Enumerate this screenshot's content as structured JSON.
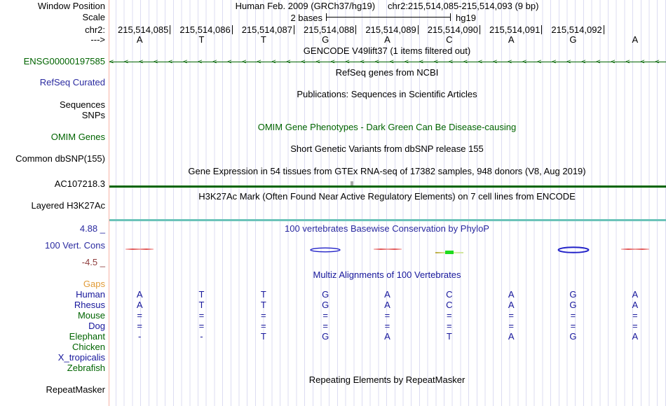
{
  "header": {
    "window_position_label": "Window Position",
    "assembly_title": "Human Feb. 2009 (GRCh37/hg19)",
    "position_string": "chr2:215,514,085-215,514,093 (9 bp)",
    "scale_label": "Scale",
    "scale_value": "2 bases",
    "assembly_short": "hg19",
    "chrom_label": "chr2:",
    "strand_label": "--->"
  },
  "ruler": {
    "coordinates": [
      "215,514,085",
      "215,514,086",
      "215,514,087",
      "215,514,088",
      "215,514,089",
      "215,514,090",
      "215,514,091",
      "215,514,092"
    ],
    "sequence": [
      "A",
      "T",
      "T",
      "G",
      "A",
      "C",
      "A",
      "G",
      "A"
    ]
  },
  "track_titles": {
    "gencode": "GENCODE V49lift37 (1 items filtered out)",
    "refseq": "RefSeq genes from NCBI",
    "publications": "Publications: Sequences in Scientific Articles",
    "omim": "OMIM Gene Phenotypes - Dark Green Can Be Disease-causing",
    "dbsnp": "Short Genetic Variants from dbSNP release 155",
    "gtex": "Gene Expression in 54 tissues from GTEx RNA-seq of 17382 samples, 948 donors (V8, Aug 2019)",
    "h3k27ac": "H3K27Ac Mark (Often Found Near Active Regulatory Elements) on 7 cell lines from ENCODE",
    "phylop": "100 vertebrates Basewise Conservation by PhyloP",
    "multiz": "Multiz Alignments of 100 Vertebrates",
    "repeatmasker": "Repeating Elements by RepeatMasker"
  },
  "left_labels": {
    "gene": "ENSG00000197585",
    "refseq_curated": "RefSeq Curated",
    "sequences": "Sequences",
    "snps": "SNPs",
    "omim_genes": "OMIM Genes",
    "common_dbsnp": "Common dbSNP(155)",
    "gtex_gene": "AC107218.3",
    "layered_h3k27ac": "Layered H3K27Ac",
    "repeatmasker": "RepeatMasker"
  },
  "conservation": {
    "label": "100 Vert. Cons",
    "scale_max": "4.88 _",
    "scale_min": "-4.5 _",
    "marks": [
      {
        "base_index": 0,
        "shape": "line",
        "color": "red"
      },
      {
        "base_index": 3,
        "shape": "lens",
        "color": "blue",
        "size": "small"
      },
      {
        "base_index": 4,
        "shape": "line",
        "color": "red"
      },
      {
        "base_index": 5,
        "shape": "line-dot",
        "color": "green"
      },
      {
        "base_index": 7,
        "shape": "lens",
        "color": "blue",
        "size": "large"
      },
      {
        "base_index": 8,
        "shape": "line",
        "color": "red"
      }
    ]
  },
  "alignment": {
    "rows": [
      {
        "species": "Gaps",
        "color": "orange",
        "bases": []
      },
      {
        "species": "Human",
        "color": "navy",
        "bases": [
          "A",
          "T",
          "T",
          "G",
          "A",
          "C",
          "A",
          "G",
          "A"
        ]
      },
      {
        "species": "Rhesus",
        "color": "navy",
        "bases": [
          "A",
          "T",
          "T",
          "G",
          "A",
          "C",
          "A",
          "G",
          "A"
        ]
      },
      {
        "species": "Mouse",
        "color": "green",
        "bases": [
          "=",
          "=",
          "=",
          "=",
          "=",
          "=",
          "=",
          "=",
          "="
        ]
      },
      {
        "species": "Dog",
        "color": "navy",
        "bases": [
          "=",
          "=",
          "=",
          "=",
          "=",
          "=",
          "=",
          "=",
          "="
        ]
      },
      {
        "species": "Elephant",
        "color": "green",
        "bases": [
          "-",
          "-",
          "T",
          "G",
          "A",
          "T",
          "A",
          "G",
          "A"
        ]
      },
      {
        "species": "Chicken",
        "color": "green",
        "bases": []
      },
      {
        "species": "X_tropicalis",
        "color": "navy",
        "bases": []
      },
      {
        "species": "Zebrafish",
        "color": "green",
        "bases": []
      }
    ],
    "muted": {
      "Mouse": "all",
      "Dog": "all",
      "Elephant": [
        0,
        1,
        5
      ]
    }
  },
  "colors": {
    "track_green": "#006400",
    "label_navy": "#16169b",
    "title_blue": "#2a2aa0",
    "scale_min_maroon": "#8e3b3b",
    "gaps_orange": "#e19b37",
    "h3k27ac_teal": "#6cc3b9",
    "grid_lavender": "#dcdcf2",
    "window_start_salmon": "#f6b2a6",
    "cons_positive_blue": "#2121c8",
    "cons_negative_red": "#e05555",
    "cons_green": "#1edb1e"
  }
}
